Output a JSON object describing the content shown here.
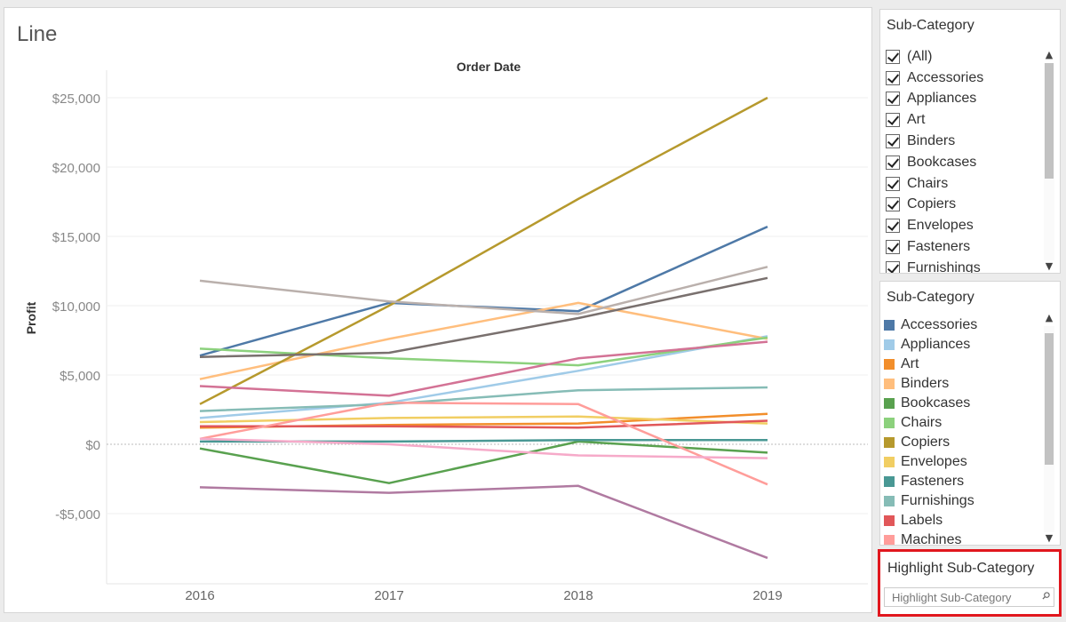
{
  "sheet_title": "Line",
  "filter_card": {
    "title": "Sub-Category",
    "items": [
      "(All)",
      "Accessories",
      "Appliances",
      "Art",
      "Binders",
      "Bookcases",
      "Chairs",
      "Copiers",
      "Envelopes",
      "Fasteners",
      "Furnishings"
    ]
  },
  "legend_card": {
    "title": "Sub-Category",
    "items": [
      {
        "label": "Accessories",
        "color": "#4e79a7"
      },
      {
        "label": "Appliances",
        "color": "#a0cbe8"
      },
      {
        "label": "Art",
        "color": "#f28e2b"
      },
      {
        "label": "Binders",
        "color": "#ffbe7d"
      },
      {
        "label": "Bookcases",
        "color": "#59a14f"
      },
      {
        "label": "Chairs",
        "color": "#8cd17d"
      },
      {
        "label": "Copiers",
        "color": "#b6992d"
      },
      {
        "label": "Envelopes",
        "color": "#f1ce63"
      },
      {
        "label": "Fasteners",
        "color": "#499894"
      },
      {
        "label": "Furnishings",
        "color": "#86bcb6"
      },
      {
        "label": "Labels",
        "color": "#e15759"
      },
      {
        "label": "Machines",
        "color": "#ff9d9a"
      }
    ]
  },
  "highlight": {
    "title": "Highlight Sub-Category",
    "placeholder": "Highlight Sub-Category"
  },
  "chart_data": {
    "type": "line",
    "title": "",
    "xlabel": "Order Date",
    "ylabel": "Profit",
    "x": [
      "2016",
      "2017",
      "2018",
      "2019"
    ],
    "ylim": [
      -10000,
      27000
    ],
    "yticks": [
      -5000,
      0,
      5000,
      10000,
      15000,
      20000,
      25000
    ],
    "ytick_labels": [
      "-$5,000",
      "$0",
      "$5,000",
      "$10,000",
      "$15,000",
      "$20,000",
      "$25,000"
    ],
    "grid": true,
    "series": [
      {
        "name": "Accessories",
        "color": "#4e79a7",
        "values": [
          6400,
          10200,
          9600,
          15700
        ]
      },
      {
        "name": "Appliances",
        "color": "#a0cbe8",
        "values": [
          1900,
          3000,
          5300,
          7800
        ]
      },
      {
        "name": "Art",
        "color": "#f28e2b",
        "values": [
          1200,
          1400,
          1500,
          2200
        ]
      },
      {
        "name": "Binders",
        "color": "#ffbe7d",
        "values": [
          4700,
          7600,
          10200,
          7600
        ]
      },
      {
        "name": "Bookcases",
        "color": "#59a14f",
        "values": [
          -300,
          -2800,
          200,
          -600
        ]
      },
      {
        "name": "Chairs",
        "color": "#8cd17d",
        "values": [
          6900,
          6200,
          5700,
          7700
        ]
      },
      {
        "name": "Copiers",
        "color": "#b6992d",
        "values": [
          2900,
          10000,
          17700,
          25000
        ]
      },
      {
        "name": "Envelopes",
        "color": "#f1ce63",
        "values": [
          1600,
          1900,
          2000,
          1500
        ]
      },
      {
        "name": "Fasteners",
        "color": "#499894",
        "values": [
          200,
          200,
          300,
          300
        ]
      },
      {
        "name": "Furnishings",
        "color": "#86bcb6",
        "values": [
          2400,
          2900,
          3900,
          4100
        ]
      },
      {
        "name": "Labels",
        "color": "#e15759",
        "values": [
          1300,
          1300,
          1200,
          1700
        ]
      },
      {
        "name": "Machines",
        "color": "#ff9d9a",
        "values": [
          400,
          3000,
          2900,
          -2900
        ]
      },
      {
        "name": "",
        "color": "#f6aac9",
        "values": [
          400,
          0,
          -800,
          -1000
        ]
      },
      {
        "name": "",
        "color": "#d37295",
        "values": [
          4200,
          3500,
          6200,
          7400
        ]
      },
      {
        "name": "",
        "color": "#b07aa1",
        "values": [
          -3100,
          -3500,
          -3000,
          -8200
        ]
      },
      {
        "name": "",
        "color": "#79706e",
        "values": [
          6300,
          6600,
          9100,
          12000
        ]
      },
      {
        "name": "",
        "color": "#bab0ac",
        "values": [
          11800,
          10300,
          9400,
          12800
        ]
      }
    ]
  }
}
